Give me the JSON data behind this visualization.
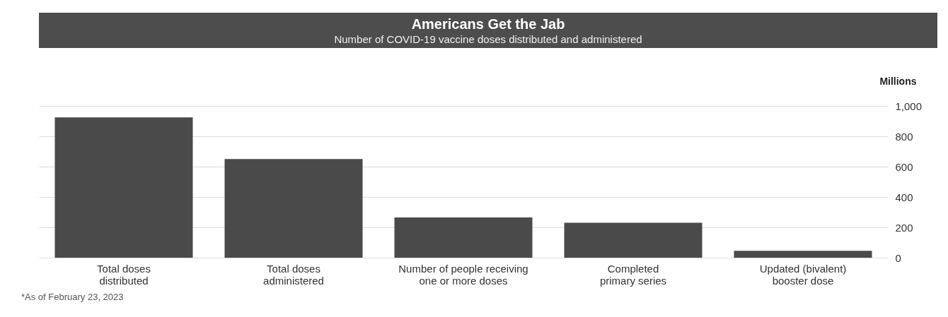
{
  "chart_data": {
    "type": "bar",
    "title": "Americans Get the Jab",
    "subtitle": "Number of COVID-19 vaccine doses distributed and administered",
    "categories": [
      "Total doses\ndistributed",
      "Total doses\nadministered",
      "Number of people receiving\none or more doses",
      "Completed\nprimary series",
      "Updated (bivalent)\nbooster dose"
    ],
    "values": [
      925,
      650,
      265,
      230,
      45
    ],
    "color": "#4a4a4a",
    "ylabel": "Millions",
    "ylim": [
      0,
      1000
    ],
    "yticks": [
      0,
      200,
      400,
      600,
      {
        "value": 800,
        "label": "800"
      },
      {
        "value": 1000,
        "label": "1,000"
      }
    ],
    "grid": "y",
    "annotations": [
      "*As of February 23, 2023"
    ]
  }
}
